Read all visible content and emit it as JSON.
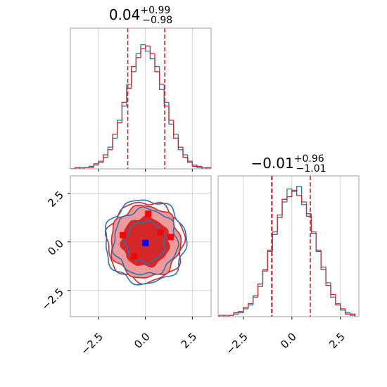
{
  "chart_data": [
    {
      "type": "histogram",
      "title": "0.04",
      "title_upper": "+0.99",
      "title_lower": "−0.98",
      "bins": [
        -4.0,
        -3.75,
        -3.5,
        -3.25,
        -3.0,
        -2.75,
        -2.5,
        -2.25,
        -2.0,
        -1.75,
        -1.5,
        -1.25,
        -1.0,
        -0.75,
        -0.5,
        -0.25,
        0.0,
        0.25,
        0.5,
        0.75,
        1.0,
        1.25,
        1.5,
        1.75,
        2.0,
        2.25,
        2.5,
        2.75,
        3.0,
        3.25,
        3.5
      ],
      "series": [
        {
          "color": "#1f77b4",
          "values": [
            0,
            0,
            1,
            1,
            2,
            3,
            6,
            9,
            17,
            24,
            38,
            49,
            66,
            76,
            90,
            97,
            92,
            86,
            80,
            62,
            52,
            35,
            27,
            15,
            11,
            5,
            3,
            1,
            1,
            0
          ]
        },
        {
          "color": "#d62728",
          "values": [
            0,
            1,
            0,
            1,
            1,
            4,
            5,
            11,
            15,
            27,
            36,
            52,
            63,
            80,
            87,
            94,
            96,
            90,
            76,
            66,
            49,
            38,
            24,
            17,
            9,
            6,
            2,
            2,
            0,
            1
          ]
        }
      ],
      "quantile_lines": [
        {
          "value": -0.94,
          "color": "#d62728"
        },
        {
          "value": 1.03,
          "color": "#d62728"
        }
      ],
      "xlim": [
        -4.0,
        3.5
      ],
      "ylim": [
        0,
        110
      ],
      "xticks": [
        -2.5,
        0,
        2.5
      ],
      "grid": true
    },
    {
      "type": "scatter",
      "series": [
        {
          "color": "#ff0000",
          "x": [
            -1.2,
            0.15,
            0.8,
            1.35,
            -0.6
          ],
          "y": [
            0.35,
            1.45,
            0.5,
            0.25,
            -0.75
          ]
        },
        {
          "color": "#0000ff",
          "x": [
            0.0
          ],
          "y": [
            -0.05
          ]
        }
      ],
      "contours": [
        {
          "color": "#d62728",
          "radius": 2.05
        },
        {
          "color": "#1f77b4",
          "radius": 2.15
        },
        {
          "color": "#d62728",
          "fill": "#ee9a9a",
          "radius": 1.85
        },
        {
          "color": "#1f77b4",
          "radius": 1.7
        },
        {
          "color": "#d62728",
          "fill": "#d62728",
          "radius": 1.25
        },
        {
          "color": "#1f77b4",
          "radius": 1.05
        }
      ],
      "xlim": [
        -4.0,
        3.5
      ],
      "ylim": [
        -3.85,
        3.4
      ],
      "xticks": [
        {
          "value": -2.5,
          "label": "−2.5"
        },
        {
          "value": 0,
          "label": "0.0"
        },
        2.5
      ],
      "yticks": [
        {
          "value": -2.5,
          "label": "−2.5"
        },
        {
          "value": 0,
          "label": "0.0"
        },
        2.5
      ],
      "grid": true
    },
    {
      "type": "histogram",
      "title": "−0.01",
      "title_upper": "+0.96",
      "title_lower": "−1.01",
      "bins": [
        -3.75,
        -3.5,
        -3.25,
        -3.0,
        -2.75,
        -2.5,
        -2.25,
        -2.0,
        -1.75,
        -1.5,
        -1.25,
        -1.0,
        -0.75,
        -0.5,
        -0.25,
        0.0,
        0.25,
        0.5,
        0.75,
        1.0,
        1.25,
        1.5,
        1.75,
        2.0,
        2.25,
        2.5,
        2.75,
        3.0,
        3.25
      ],
      "series": [
        {
          "color": "#1f77b4",
          "values": [
            0,
            1,
            1,
            2,
            4,
            6,
            9,
            16,
            23,
            36,
            50,
            63,
            78,
            88,
            98,
            96,
            100,
            86,
            79,
            64,
            50,
            36,
            26,
            15,
            10,
            5,
            3,
            1
          ]
        },
        {
          "color": "#d62728",
          "values": [
            1,
            0,
            1,
            3,
            3,
            7,
            10,
            15,
            25,
            35,
            51,
            65,
            76,
            90,
            92,
            97,
            93,
            88,
            77,
            65,
            51,
            38,
            24,
            17,
            9,
            6,
            2,
            2
          ]
        }
      ],
      "quantile_lines": [
        {
          "value": -1.04,
          "color": "#1f3a6e"
        },
        {
          "value": -1.02,
          "color": "#d62728"
        },
        {
          "value": 0.95,
          "color": "#d62728"
        }
      ],
      "xlim": [
        -3.8,
        3.45
      ],
      "ylim": [
        0,
        108
      ],
      "xticks": [
        {
          "value": -2.5,
          "label": "−2.5"
        },
        {
          "value": 0,
          "label": "0.0"
        },
        2.5
      ],
      "grid": true
    }
  ]
}
